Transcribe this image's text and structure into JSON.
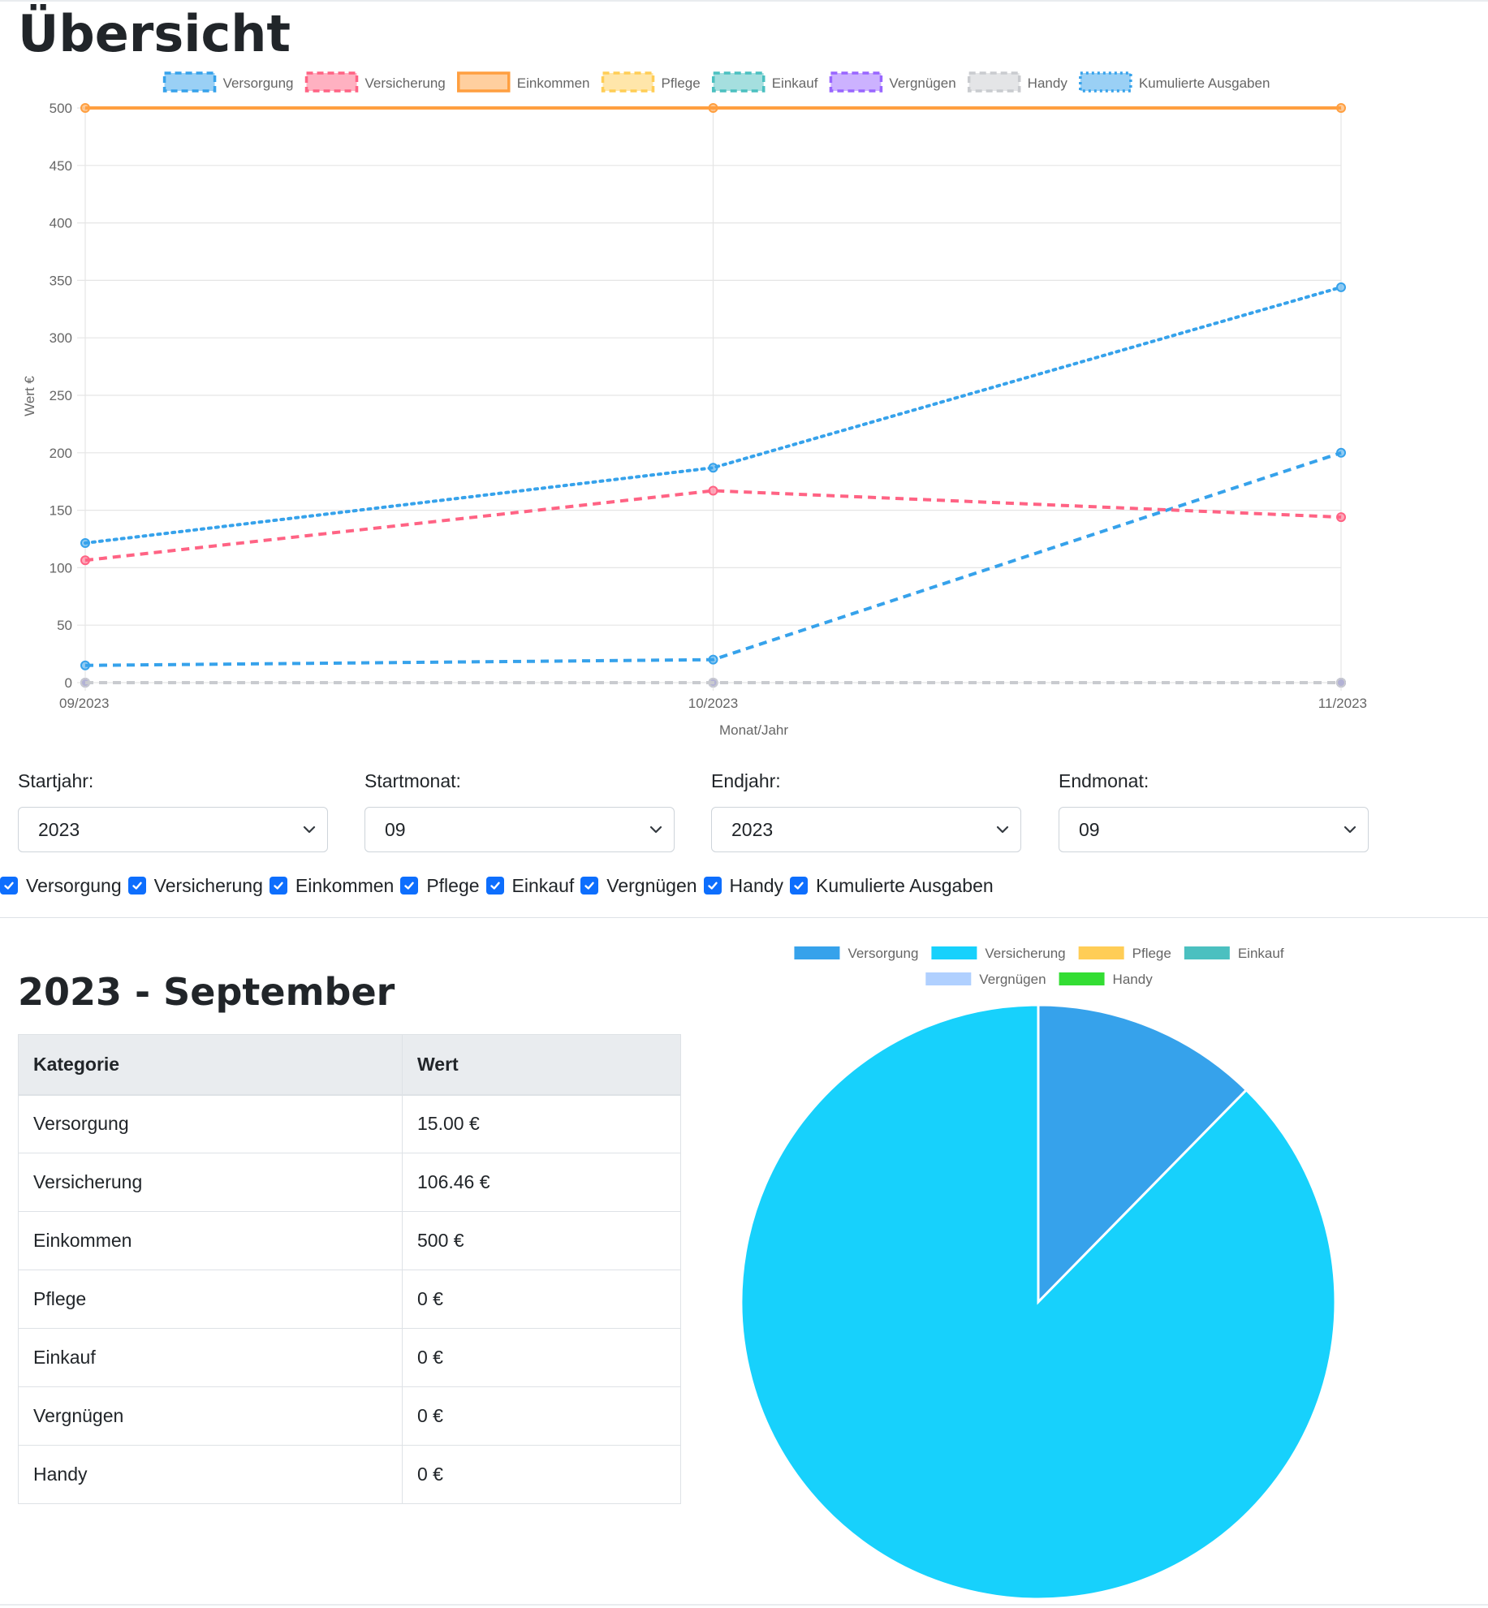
{
  "page": {
    "title": "Übersicht"
  },
  "chart_data": [
    {
      "type": "line",
      "categories": [
        "09/2023",
        "10/2023",
        "11/2023"
      ],
      "xlabel": "Monat/Jahr",
      "ylabel": "Wert €",
      "ylim": [
        0,
        500
      ],
      "yticks": [
        0,
        50,
        100,
        150,
        200,
        250,
        300,
        350,
        400,
        450,
        500
      ],
      "grid": true,
      "legend_position": "top",
      "series": [
        {
          "name": "Versorgung",
          "values": [
            15,
            20,
            200
          ],
          "color": "#36a2eb",
          "dash": "dashed"
        },
        {
          "name": "Versicherung",
          "values": [
            106.46,
            167,
            144
          ],
          "color": "#ff6384",
          "dash": "dashed"
        },
        {
          "name": "Einkommen",
          "values": [
            500,
            500,
            500
          ],
          "color": "#ff9f40",
          "dash": "solid"
        },
        {
          "name": "Pflege",
          "values": [
            0,
            0,
            0
          ],
          "color": "#ffcd56",
          "dash": "dashed"
        },
        {
          "name": "Einkauf",
          "values": [
            0,
            0,
            0
          ],
          "color": "#4bc0c0",
          "dash": "dashed"
        },
        {
          "name": "Vergnügen",
          "values": [
            0,
            0,
            0
          ],
          "color": "#9966ff",
          "dash": "dashed"
        },
        {
          "name": "Handy",
          "values": [
            0,
            0,
            0
          ],
          "color": "#c9cbcf",
          "dash": "dashed"
        },
        {
          "name": "Kumulierte Ausgaben",
          "values": [
            121.46,
            187,
            344
          ],
          "color": "#36a2eb",
          "dash": "dotted"
        }
      ]
    },
    {
      "type": "pie",
      "legend_position": "top",
      "categories": [
        "Versorgung",
        "Versicherung",
        "Pflege",
        "Einkauf",
        "Vergnügen",
        "Handy"
      ],
      "values": [
        15.0,
        106.46,
        0,
        0,
        0,
        0
      ],
      "colors": [
        "#36a2eb",
        "#17d1fc",
        "#ffcd56",
        "#4bc0c0",
        "#b0d0ff",
        "#33dd33"
      ]
    }
  ],
  "filters": {
    "start_year": {
      "label": "Startjahr:",
      "value": "2023"
    },
    "start_month": {
      "label": "Startmonat:",
      "value": "09"
    },
    "end_year": {
      "label": "Endjahr:",
      "value": "2023"
    },
    "end_month": {
      "label": "Endmonat:",
      "value": "09"
    }
  },
  "checkboxes": [
    {
      "label": "Versorgung",
      "checked": true
    },
    {
      "label": "Versicherung",
      "checked": true
    },
    {
      "label": "Einkommen",
      "checked": true
    },
    {
      "label": "Pflege",
      "checked": true
    },
    {
      "label": "Einkauf",
      "checked": true
    },
    {
      "label": "Vergnügen",
      "checked": true
    },
    {
      "label": "Handy",
      "checked": true
    },
    {
      "label": "Kumulierte Ausgaben",
      "checked": true
    }
  ],
  "month_section": {
    "title": "2023 - September",
    "table": {
      "headers": [
        "Kategorie",
        "Wert"
      ],
      "rows": [
        [
          "Versorgung",
          "15.00 €"
        ],
        [
          "Versicherung",
          "106.46 €"
        ],
        [
          "Einkommen",
          "500 €"
        ],
        [
          "Pflege",
          "0 €"
        ],
        [
          "Einkauf",
          "0 €"
        ],
        [
          "Vergnügen",
          "0 €"
        ],
        [
          "Handy",
          "0 €"
        ]
      ]
    }
  }
}
